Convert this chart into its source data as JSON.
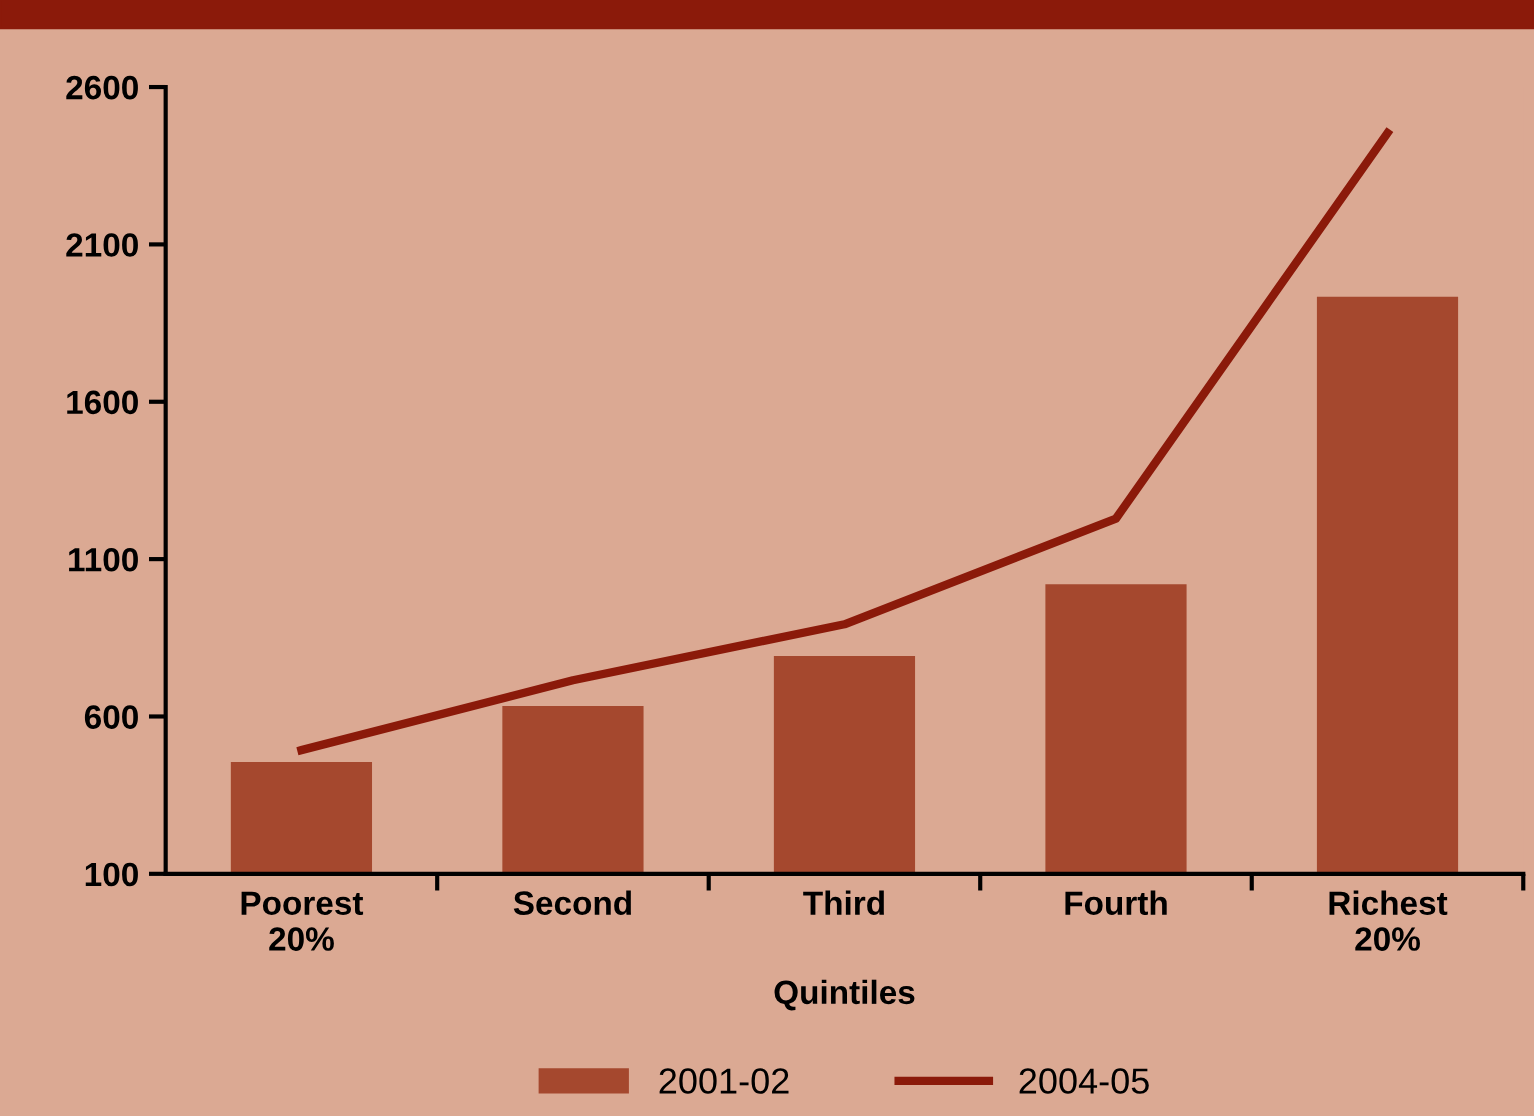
{
  "chart_data": {
    "type": "bar",
    "xlabel": "Quintiles",
    "categories": [
      "Poorest\n20%",
      "Second",
      "Third",
      "Fourth",
      "Richest\n20%"
    ],
    "series": [
      {
        "name": "2001-02",
        "color": "#a5482e",
        "values": [
          455,
          633,
          792,
          1020,
          1934
        ]
      },
      {
        "name": "2004-05",
        "type": "line",
        "color": "#8b1a0a",
        "values": [
          493,
          715,
          893,
          1229,
          2454
        ]
      }
    ],
    "ylim": [
      100,
      2600
    ],
    "yticks": [
      100,
      600,
      1100,
      1600,
      2100,
      2600
    ],
    "grid": false,
    "legend": "bottom",
    "marker": "none",
    "line_style": "solid"
  }
}
